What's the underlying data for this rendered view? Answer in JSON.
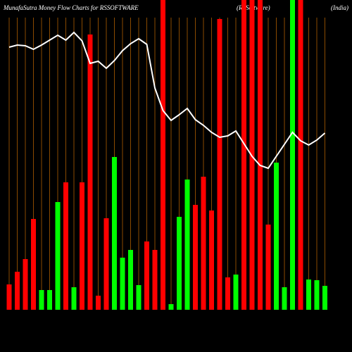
{
  "chart_data": {
    "type": "bar",
    "title": "MunafaSutra  Money Flow  Charts for RSSOFTWARE",
    "subtitle": "(RSSoftware)",
    "region": "(India)",
    "ylim": [
      0,
      440
    ],
    "values": [
      36,
      54,
      72,
      129,
      28,
      28,
      153,
      181,
      32,
      181,
      391,
      20,
      130,
      217,
      74,
      85,
      35,
      97,
      85,
      440,
      8,
      132,
      185,
      149,
      189,
      141,
      413,
      46,
      50,
      440,
      440,
      440,
      121,
      209,
      32,
      440,
      440,
      43,
      42,
      34
    ],
    "bar_colors": [
      "#ff0000",
      "#ff0000",
      "#ff0000",
      "#ff0000",
      "#00ff00",
      "#00ff00",
      "#00ff00",
      "#ff0000",
      "#00ff00",
      "#ff0000",
      "#ff0000",
      "#ff0000",
      "#ff0000",
      "#00ff00",
      "#00ff00",
      "#00ff00",
      "#00ff00",
      "#ff0000",
      "#ff0000",
      "#ff0000",
      "#00ff00",
      "#00ff00",
      "#00ff00",
      "#ff0000",
      "#ff0000",
      "#ff0000",
      "#ff0000",
      "#ff0000",
      "#00ff00",
      "#ff0000",
      "#ff0000",
      "#ff0000",
      "#ff0000",
      "#00ff00",
      "#00ff00",
      "#00ff00",
      "#ff0000",
      "#00ff00",
      "#00ff00",
      "#00ff00"
    ],
    "line": {
      "color": "#ffffff",
      "values": [
        373,
        376,
        375,
        370,
        376,
        383,
        390,
        383,
        394,
        382,
        350,
        353,
        343,
        354,
        368,
        378,
        385,
        377,
        315,
        283,
        269,
        277,
        286,
        270,
        262,
        252,
        245,
        247,
        254,
        236,
        218,
        205,
        201,
        218,
        235,
        252,
        240,
        234,
        241,
        251
      ]
    },
    "guide_color": "#8a4a00"
  }
}
